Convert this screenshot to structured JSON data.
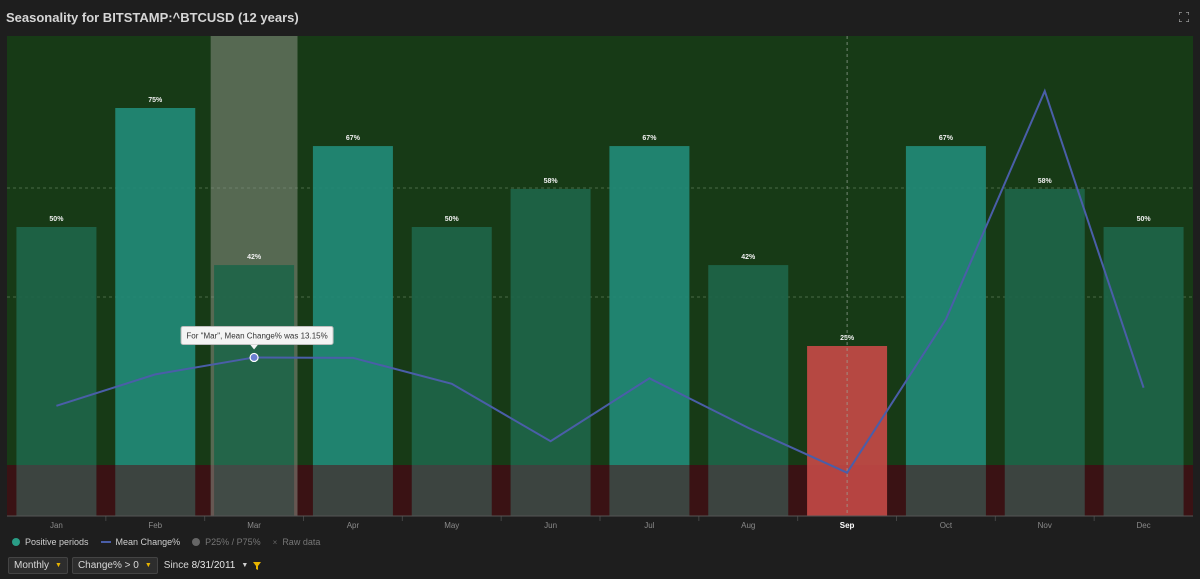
{
  "header": {
    "title": "Seasonality for BITSTAMP:^BTCUSD (12 years)"
  },
  "chart_data": {
    "type": "bar",
    "categories": [
      "Jan",
      "Feb",
      "Mar",
      "Apr",
      "May",
      "Jun",
      "Jul",
      "Aug",
      "Sep",
      "Oct",
      "Nov",
      "Dec"
    ],
    "series": [
      {
        "name": "Positive periods",
        "unit": "%",
        "values": [
          50,
          75,
          42,
          67,
          50,
          58,
          67,
          42,
          25,
          67,
          58,
          50
        ],
        "labels": [
          "50%",
          "75%",
          "42%",
          "67%",
          "50%",
          "58%",
          "67%",
          "42%",
          "25%",
          "67%",
          "58%",
          "50%"
        ],
        "color": "#1f8a74"
      },
      {
        "name": "Mean Change%",
        "type": "line",
        "values": [
          7.0,
          11.0,
          13.15,
          13.1,
          9.8,
          2.5,
          10.5,
          4.2,
          -1.5,
          18.0,
          47.0,
          9.3
        ],
        "color": "#4a5ea8"
      }
    ],
    "ylim": [
      0,
      100
    ],
    "line_ylim": [
      -7,
      54
    ],
    "highlighted_category": "Sep",
    "hover_category": "Mar",
    "tooltip": "For \"Mar\", Mean Change% was 13.15%",
    "colors": {
      "positive_zone": "#173a16",
      "negative_zone": "#3a1214",
      "bar_strong": "#228a77",
      "bar_weak": "#1e6549",
      "bar_negative": "#c44a46",
      "hover_column": "#8a8f85",
      "line": "#4a5ea8"
    },
    "legend": [
      "Positive periods",
      "Mean Change%",
      "P25% / P75%",
      "Raw data"
    ]
  },
  "legend": {
    "positive": "Positive periods",
    "mean": "Mean Change%",
    "pct": "P25% / P75%",
    "raw": "Raw data"
  },
  "controls": {
    "period": "Monthly",
    "filter": "Change% > 0",
    "since_label": "Since",
    "since_date": "8/31/2011"
  }
}
